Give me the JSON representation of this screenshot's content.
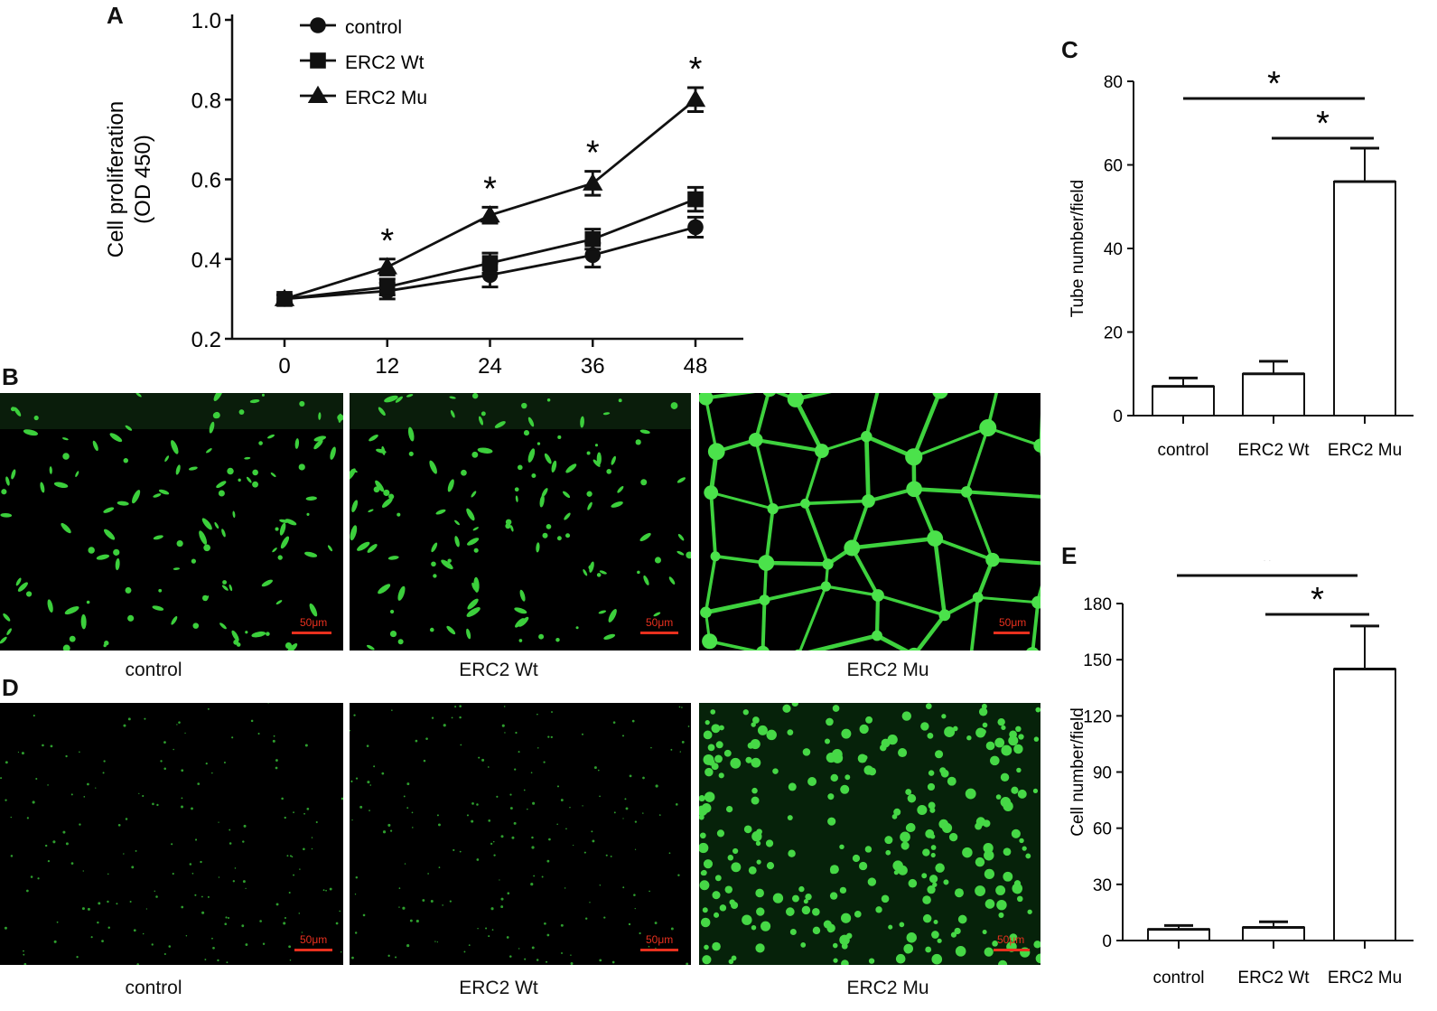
{
  "panels": {
    "a": "A",
    "b": "B",
    "c": "C",
    "d": "D",
    "e": "E"
  },
  "chart_data": [
    {
      "id": "A",
      "type": "line",
      "ylabel_line1": "Cell proliferation",
      "ylabel_line2": "(OD 450)",
      "x": [
        0,
        12,
        24,
        36,
        48
      ],
      "xticks": [
        "0",
        "12",
        "24",
        "36",
        "48"
      ],
      "yticks": [
        "0.2",
        "0.4",
        "0.6",
        "0.8",
        "1.0"
      ],
      "ylim": [
        0.2,
        1.0
      ],
      "series": [
        {
          "name": "control",
          "marker": "circle",
          "values": [
            0.3,
            0.32,
            0.36,
            0.41,
            0.48
          ],
          "err": [
            0.01,
            0.02,
            0.03,
            0.03,
            0.025
          ]
        },
        {
          "name": "ERC2  Wt",
          "marker": "square",
          "values": [
            0.3,
            0.33,
            0.39,
            0.45,
            0.55
          ],
          "err": [
            0.01,
            0.02,
            0.025,
            0.025,
            0.03
          ]
        },
        {
          "name": "ERC2  Mu",
          "marker": "triangle",
          "values": [
            0.3,
            0.38,
            0.51,
            0.59,
            0.8
          ],
          "err": [
            0.01,
            0.02,
            0.02,
            0.03,
            0.03
          ]
        }
      ],
      "significance": [
        "",
        "*",
        "*",
        "*",
        "*"
      ],
      "legend": "top-left"
    },
    {
      "id": "C",
      "type": "bar",
      "ylabel": "Tube number/field",
      "categories": [
        "control",
        "ERC2 Wt",
        "ERC2 Mu"
      ],
      "values": [
        7,
        10,
        56
      ],
      "err": [
        2,
        3,
        8
      ],
      "yticks": [
        "0",
        "20",
        "40",
        "60",
        "80"
      ],
      "ylim": [
        0,
        80
      ],
      "significance": [
        {
          "from": 0,
          "to": 2,
          "label": "*"
        },
        {
          "from": 1,
          "to": 2,
          "label": "*"
        }
      ]
    },
    {
      "id": "E",
      "type": "bar",
      "ylabel": "Cell number/field",
      "categories": [
        "control",
        "ERC2 Wt",
        "ERC2 Mu"
      ],
      "values": [
        6,
        7,
        145
      ],
      "err": [
        2,
        3,
        23
      ],
      "yticks": [
        "0",
        "30",
        "60",
        "90",
        "120",
        "150",
        "180"
      ],
      "ylim": [
        0,
        180
      ],
      "significance": [
        {
          "from": 0,
          "to": 2,
          "label": "*"
        },
        {
          "from": 1,
          "to": 2,
          "label": "*"
        }
      ]
    }
  ],
  "images_b": {
    "captions": [
      "control",
      "ERC2 Wt",
      "ERC2 Mu"
    ],
    "scalebar": "50μm"
  },
  "images_d": {
    "captions": [
      "control",
      "ERC2 Wt",
      "ERC2 Mu"
    ],
    "scalebar": "50μm"
  }
}
